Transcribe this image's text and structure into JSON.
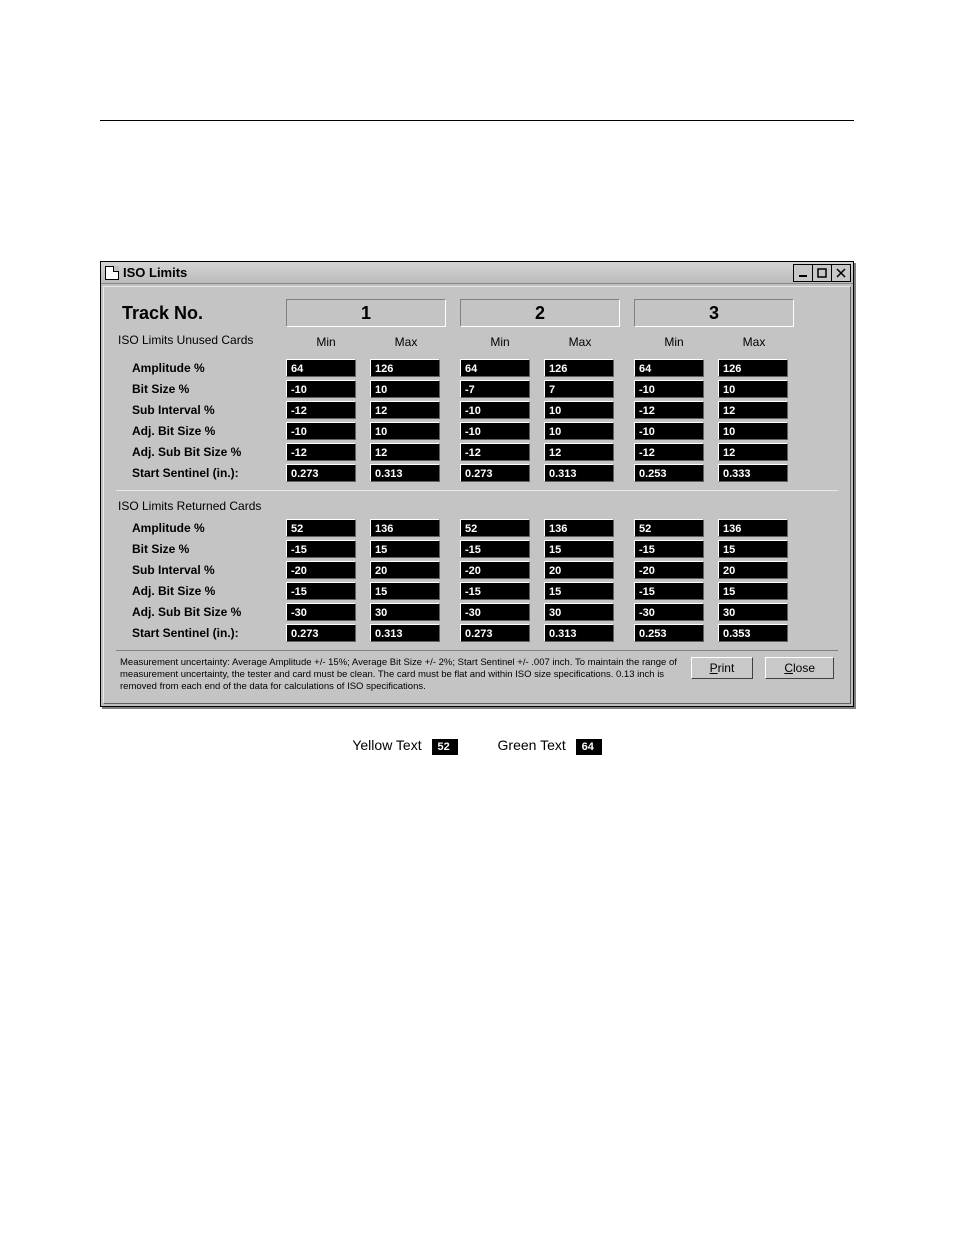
{
  "window": {
    "title": "ISO Limits"
  },
  "header": {
    "track_label": "Track No.",
    "tracks": [
      "1",
      "2",
      "3"
    ],
    "min": "Min",
    "max": "Max"
  },
  "sections": {
    "unused": {
      "title": "ISO Limits Unused Cards",
      "rows": [
        {
          "label": "Amplitude %",
          "t1": [
            "64",
            "126"
          ],
          "t2": [
            "64",
            "126"
          ],
          "t3": [
            "64",
            "126"
          ]
        },
        {
          "label": "Bit Size %",
          "t1": [
            "-10",
            "10"
          ],
          "t2": [
            "-7",
            "7"
          ],
          "t3": [
            "-10",
            "10"
          ]
        },
        {
          "label": "Sub Interval %",
          "t1": [
            "-12",
            "12"
          ],
          "t2": [
            "-10",
            "10"
          ],
          "t3": [
            "-12",
            "12"
          ]
        },
        {
          "label": "Adj. Bit Size %",
          "t1": [
            "-10",
            "10"
          ],
          "t2": [
            "-10",
            "10"
          ],
          "t3": [
            "-10",
            "10"
          ]
        },
        {
          "label": "Adj. Sub Bit Size %",
          "t1": [
            "-12",
            "12"
          ],
          "t2": [
            "-12",
            "12"
          ],
          "t3": [
            "-12",
            "12"
          ]
        },
        {
          "label": "Start Sentinel (in.):",
          "t1": [
            "0.273",
            "0.313"
          ],
          "t2": [
            "0.273",
            "0.313"
          ],
          "t3": [
            "0.253",
            "0.333"
          ]
        }
      ]
    },
    "returned": {
      "title": "ISO Limits Returned Cards",
      "rows": [
        {
          "label": "Amplitude %",
          "t1": [
            "52",
            "136"
          ],
          "t2": [
            "52",
            "136"
          ],
          "t3": [
            "52",
            "136"
          ]
        },
        {
          "label": "Bit Size %",
          "t1": [
            "-15",
            "15"
          ],
          "t2": [
            "-15",
            "15"
          ],
          "t3": [
            "-15",
            "15"
          ]
        },
        {
          "label": "Sub Interval %",
          "t1": [
            "-20",
            "20"
          ],
          "t2": [
            "-20",
            "20"
          ],
          "t3": [
            "-20",
            "20"
          ]
        },
        {
          "label": "Adj. Bit Size %",
          "t1": [
            "-15",
            "15"
          ],
          "t2": [
            "-15",
            "15"
          ],
          "t3": [
            "-15",
            "15"
          ]
        },
        {
          "label": "Adj. Sub Bit Size %",
          "t1": [
            "-30",
            "30"
          ],
          "t2": [
            "-30",
            "30"
          ],
          "t3": [
            "-30",
            "30"
          ]
        },
        {
          "label": "Start Sentinel (in.):",
          "t1": [
            "0.273",
            "0.313"
          ],
          "t2": [
            "0.273",
            "0.313"
          ],
          "t3": [
            "0.253",
            "0.353"
          ]
        }
      ]
    }
  },
  "footer": {
    "note": "Measurement uncertainty: Average Amplitude +/- 15%; Average Bit Size +/- 2%; Start Sentinel +/- .007 inch. To maintain the range of measurement uncertainty, the tester and card must be clean. The card must be flat and within ISO size specifications. 0.13 inch is removed from each end of the data for calculations of ISO specifications.",
    "print": "Print",
    "close": "Close"
  },
  "legend": {
    "yellow_label": "Yellow Text",
    "yellow_value": "52",
    "green_label": "Green Text",
    "green_value": "64"
  },
  "colors": {
    "window_bg": "#c4c4c4",
    "cell_bg": "#000000",
    "cell_fg": "#ffffff"
  }
}
